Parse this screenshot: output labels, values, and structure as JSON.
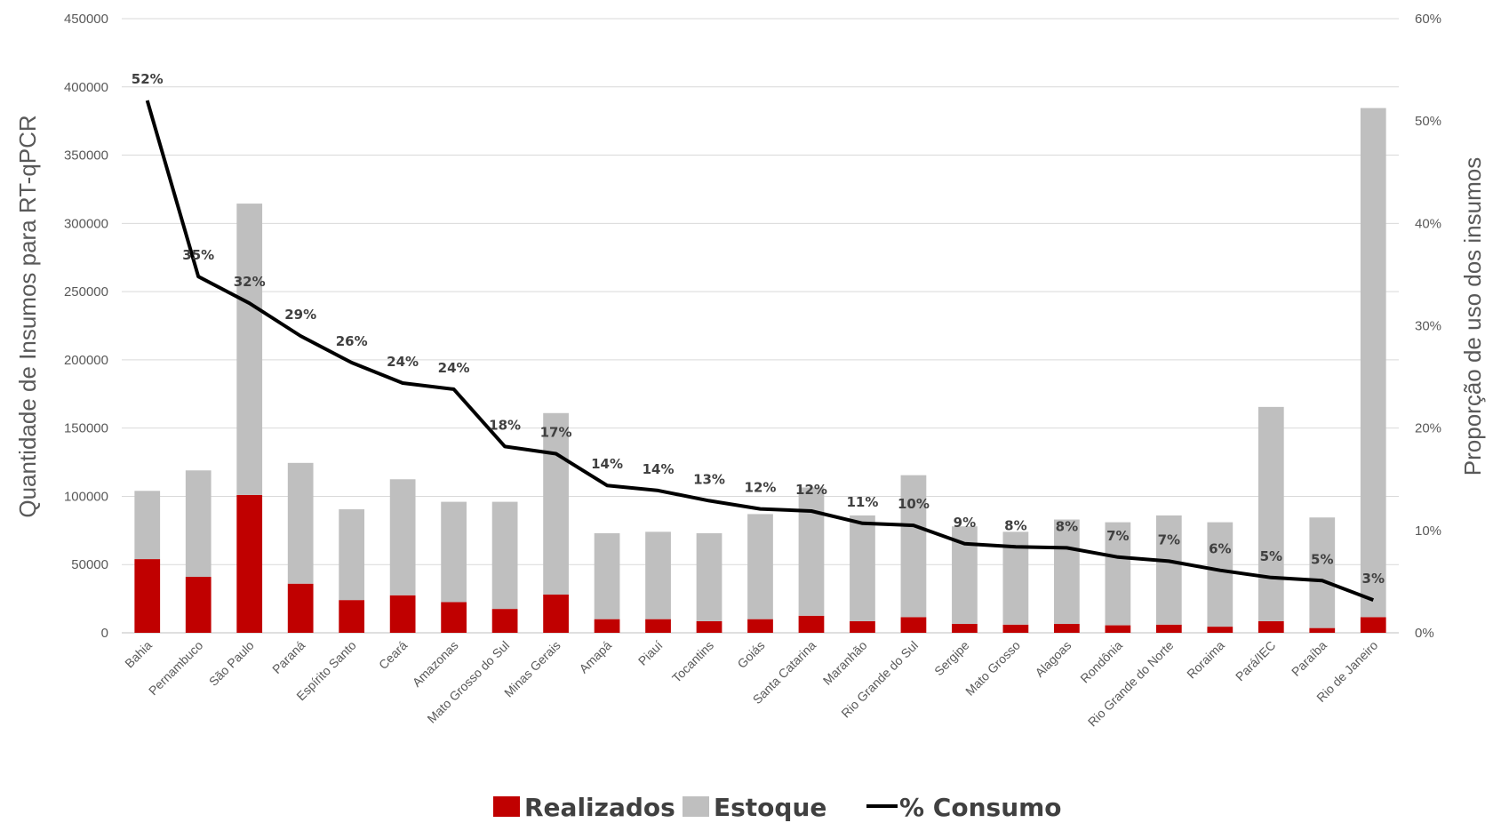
{
  "chart_data": {
    "type": "bar",
    "stacked": true,
    "categories": [
      "Bahia",
      "Pernambuco",
      "São Paulo",
      "Paraná",
      "Espírito Santo",
      "Ceará",
      "Amazonas",
      "Mato Grosso do Sul",
      "Minas Gerais",
      "Amapá",
      "Piauí",
      "Tocantins",
      "Goiás",
      "Santa Catarina",
      "Maranhão",
      "Rio Grande do Sul",
      "Sergipe",
      "Mato Grosso",
      "Alagoas",
      "Rondônia",
      "Rio Grande do Norte",
      "Roraima",
      "Pará/IEC",
      "Paraíba",
      "Rio de Janeiro"
    ],
    "series": [
      {
        "name": "Realizados",
        "type": "bar",
        "color": "#c00000",
        "values": [
          54000,
          41000,
          101000,
          36000,
          24000,
          27500,
          22500,
          17500,
          28000,
          10000,
          10000,
          8500,
          10000,
          12500,
          8500,
          11500,
          6500,
          6000,
          6500,
          5500,
          6000,
          4500,
          8500,
          3500,
          11500
        ]
      },
      {
        "name": "Estoque",
        "type": "bar",
        "color": "#bfbfbf",
        "values": [
          50000,
          78000,
          213500,
          88500,
          66500,
          85000,
          73500,
          78500,
          133000,
          63000,
          64000,
          64500,
          77000,
          94000,
          77500,
          104000,
          71500,
          68000,
          76500,
          75500,
          80000,
          76500,
          157000,
          81000,
          373000
        ]
      },
      {
        "name": "% Consumo",
        "type": "line",
        "color": "#000000",
        "axis": "right",
        "values": [
          52,
          35,
          32,
          29,
          26,
          24,
          24,
          18,
          17,
          14,
          14,
          13,
          12,
          12,
          11,
          10,
          9,
          8,
          8,
          7,
          7,
          6,
          5,
          5,
          3
        ],
        "plotted": [
          52,
          34.8,
          32.2,
          29,
          26.4,
          24.4,
          23.8,
          18.2,
          17.5,
          14.4,
          13.9,
          12.9,
          12.1,
          11.9,
          10.7,
          10.5,
          8.7,
          8.4,
          8.3,
          7.4,
          7,
          6.1,
          5.4,
          5.1,
          3.2
        ],
        "labels": [
          "52%",
          "35%",
          "32%",
          "29%",
          "26%",
          "24%",
          "24%",
          "18%",
          "17%",
          "14%",
          "14%",
          "13%",
          "12%",
          "12%",
          "11%",
          "10%",
          "9%",
          "8%",
          "8%",
          "7%",
          "7%",
          "6%",
          "5%",
          "5%",
          "3%"
        ]
      }
    ],
    "ylabel": "Quantidade de Insumos para RT-qPCR",
    "ylabel_right": "Proporção de uso dos insumos",
    "ylim": [
      0,
      450000
    ],
    "ylim_right": [
      0,
      60
    ],
    "yticks": [
      "0",
      "50000",
      "100000",
      "150000",
      "200000",
      "250000",
      "300000",
      "350000",
      "400000",
      "450000"
    ],
    "yticks_right": [
      "0%",
      "10%",
      "20%",
      "30%",
      "40%",
      "50%",
      "60%"
    ],
    "legend_position": "bottom",
    "grid": true
  }
}
